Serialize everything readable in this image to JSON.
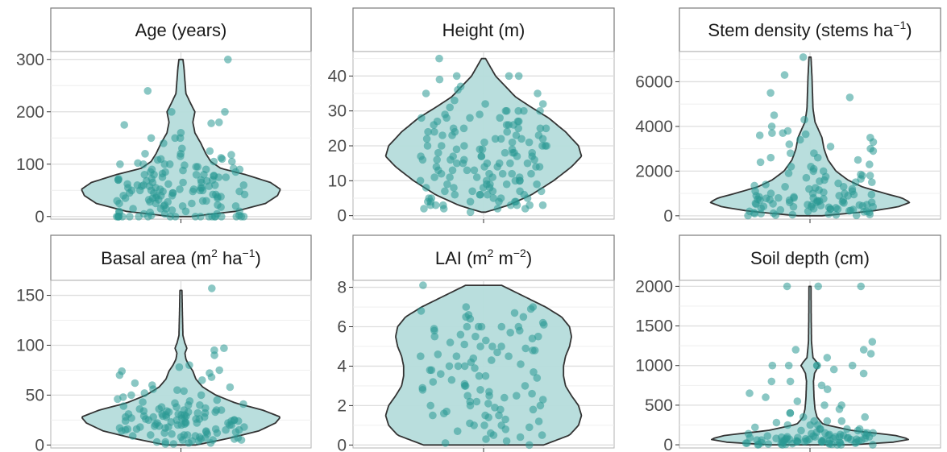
{
  "colors": {
    "violin_fill": "#b5dcdb",
    "violin_stroke": "#333333",
    "point": "#2a9994",
    "strip_bg": "#ffffff",
    "strip_border": "#7a7a7a",
    "grid_major": "#dedede",
    "grid_minor": "#eeeeee",
    "tick_text": "#4d4d4d",
    "strip_text": "#1a1a1a"
  },
  "chart_data": [
    {
      "type": "violin",
      "title": "Age (years)",
      "title_parts": [
        {
          "text": "Age (years)"
        }
      ],
      "ylim": [
        -5,
        315
      ],
      "yticks": [
        0,
        100,
        200,
        300
      ],
      "ytick_labels": [
        "0",
        "100",
        "200",
        "300"
      ],
      "grid": true,
      "density": [
        [
          0,
          0.1
        ],
        [
          10,
          0.55
        ],
        [
          25,
          0.85
        ],
        [
          40,
          0.97
        ],
        [
          52,
          1.0
        ],
        [
          65,
          0.9
        ],
        [
          80,
          0.65
        ],
        [
          92,
          0.4
        ],
        [
          105,
          0.3
        ],
        [
          120,
          0.25
        ],
        [
          140,
          0.2
        ],
        [
          160,
          0.14
        ],
        [
          180,
          0.12
        ],
        [
          200,
          0.14
        ],
        [
          215,
          0.1
        ],
        [
          235,
          0.05
        ],
        [
          260,
          0.04
        ],
        [
          285,
          0.03
        ],
        [
          300,
          0.02
        ]
      ],
      "points": [
        300,
        240,
        200,
        200,
        180,
        178,
        175,
        160,
        150,
        150,
        150,
        140,
        130,
        125,
        120,
        120,
        118,
        115,
        112,
        110,
        110,
        108,
        105,
        105,
        102,
        100,
        100,
        100,
        100,
        98,
        95,
        95,
        92,
        90,
        90,
        90,
        88,
        85,
        85,
        85,
        82,
        80,
        80,
        80,
        80,
        78,
        78,
        75,
        75,
        75,
        72,
        72,
        70,
        70,
        70,
        70,
        68,
        68,
        65,
        65,
        65,
        62,
        62,
        60,
        60,
        60,
        60,
        58,
        58,
        58,
        55,
        55,
        55,
        55,
        52,
        52,
        52,
        50,
        50,
        50,
        50,
        50,
        48,
        48,
        48,
        45,
        45,
        45,
        45,
        42,
        42,
        42,
        40,
        40,
        40,
        40,
        38,
        38,
        36,
        35,
        35,
        35,
        32,
        32,
        30,
        30,
        30,
        28,
        28,
        25,
        25,
        25,
        22,
        22,
        20,
        20,
        20,
        18,
        15,
        15,
        15,
        12,
        10,
        10,
        10,
        8,
        8,
        5,
        5,
        5,
        2,
        2,
        0,
        0,
        0,
        0,
        0,
        0,
        0,
        0,
        0,
        0,
        0,
        0,
        0,
        0,
        0,
        0,
        0,
        0,
        0,
        0
      ]
    },
    {
      "type": "violin",
      "title": "Height (m)",
      "title_parts": [
        {
          "text": "Height (m)"
        }
      ],
      "ylim": [
        -1,
        47
      ],
      "yticks": [
        0,
        10,
        20,
        30,
        40
      ],
      "ytick_labels": [
        "0",
        "10",
        "20",
        "30",
        "40"
      ],
      "grid": true,
      "density": [
        [
          1,
          0.02
        ],
        [
          3,
          0.25
        ],
        [
          6,
          0.48
        ],
        [
          10,
          0.7
        ],
        [
          14,
          0.88
        ],
        [
          17,
          0.98
        ],
        [
          20,
          0.95
        ],
        [
          24,
          0.82
        ],
        [
          28,
          0.65
        ],
        [
          31,
          0.48
        ],
        [
          34,
          0.32
        ],
        [
          37,
          0.22
        ],
        [
          40,
          0.12
        ],
        [
          43,
          0.06
        ],
        [
          45,
          0.02
        ]
      ],
      "points": [
        45,
        40,
        40,
        40,
        39,
        36,
        35,
        33,
        32,
        32,
        31,
        30,
        30,
        30,
        30,
        29,
        29,
        28,
        28,
        28,
        27,
        27,
        27,
        26,
        26,
        26,
        25,
        25,
        25,
        25,
        24,
        24,
        24,
        23,
        23,
        23,
        22,
        22,
        22,
        22,
        21,
        21,
        21,
        20,
        20,
        20,
        20,
        20,
        19,
        19,
        19,
        18,
        18,
        18,
        18,
        17,
        17,
        17,
        17,
        17,
        16,
        16,
        16,
        16,
        15,
        15,
        15,
        15,
        15,
        14,
        14,
        14,
        14,
        13,
        13,
        13,
        13,
        12,
        12,
        12,
        12,
        11,
        11,
        11,
        11,
        10,
        10,
        10,
        10,
        10,
        9,
        9,
        9,
        9,
        8,
        8,
        8,
        8,
        7,
        7,
        7,
        7,
        6,
        6,
        6,
        6,
        6,
        5,
        5,
        5,
        5,
        5,
        4,
        4,
        4,
        4,
        4,
        4,
        3,
        3,
        3,
        3,
        3,
        3,
        3,
        2,
        2,
        2,
        2,
        1,
        30,
        28,
        26,
        24,
        22,
        20,
        18,
        16,
        14,
        12,
        25,
        23,
        19,
        17,
        15,
        11,
        9,
        7,
        35,
        37
      ]
    },
    {
      "type": "violin",
      "title": "Stem density (stems ha⁻¹)",
      "title_parts": [
        {
          "text": "Stem density (stems ha"
        },
        {
          "text": "−1",
          "sup": true
        },
        {
          "text": ")"
        }
      ],
      "ylim": [
        -150,
        7350
      ],
      "yticks": [
        0,
        2000,
        4000,
        6000
      ],
      "ytick_labels": [
        "0",
        "2000",
        "4000",
        "6000"
      ],
      "grid": true,
      "density": [
        [
          0,
          0.12
        ],
        [
          200,
          0.6
        ],
        [
          400,
          0.88
        ],
        [
          600,
          1.0
        ],
        [
          800,
          0.92
        ],
        [
          1000,
          0.75
        ],
        [
          1300,
          0.52
        ],
        [
          1600,
          0.38
        ],
        [
          2000,
          0.26
        ],
        [
          2500,
          0.18
        ],
        [
          3000,
          0.14
        ],
        [
          3500,
          0.12
        ],
        [
          3800,
          0.09
        ],
        [
          4200,
          0.05
        ],
        [
          4800,
          0.03
        ],
        [
          5500,
          0.025
        ],
        [
          6200,
          0.02
        ],
        [
          7100,
          0.01
        ]
      ],
      "points": [
        7100,
        6300,
        5500,
        5300,
        4500,
        4300,
        4000,
        3800,
        3700,
        3650,
        3600,
        3500,
        3400,
        3300,
        3100,
        3000,
        2900,
        2800,
        2600,
        2500,
        2400,
        2300,
        2200,
        2100,
        2000,
        2000,
        1900,
        1850,
        1800,
        1750,
        1700,
        1650,
        1600,
        1550,
        1500,
        1450,
        1400,
        1350,
        1300,
        1300,
        1250,
        1200,
        1150,
        1100,
        1100,
        1050,
        1000,
        1000,
        950,
        950,
        900,
        900,
        850,
        850,
        800,
        800,
        780,
        760,
        740,
        720,
        700,
        700,
        680,
        660,
        640,
        620,
        600,
        600,
        580,
        560,
        540,
        520,
        500,
        500,
        480,
        460,
        440,
        420,
        400,
        400,
        380,
        360,
        340,
        320,
        300,
        300,
        280,
        260,
        240,
        220,
        200,
        200,
        180,
        160,
        140,
        120,
        100,
        100,
        80,
        60,
        50,
        40,
        30,
        20,
        10,
        900,
        700,
        500,
        300,
        1500,
        1200,
        800,
        600,
        400,
        200,
        2600,
        2200,
        1800,
        1000,
        3700,
        3200,
        2800
      ]
    },
    {
      "type": "violin",
      "title": "Basal area (m² ha⁻¹)",
      "title_parts": [
        {
          "text": "Basal area (m"
        },
        {
          "text": "2",
          "sup": true
        },
        {
          "text": " ha"
        },
        {
          "text": "−1",
          "sup": true
        },
        {
          "text": ")"
        }
      ],
      "ylim": [
        -3,
        165
      ],
      "yticks": [
        0,
        50,
        100,
        150
      ],
      "ytick_labels": [
        "0",
        "50",
        "100",
        "150"
      ],
      "grid": true,
      "density": [
        [
          0,
          0.15
        ],
        [
          6,
          0.45
        ],
        [
          14,
          0.78
        ],
        [
          22,
          0.95
        ],
        [
          28,
          1.0
        ],
        [
          35,
          0.82
        ],
        [
          42,
          0.55
        ],
        [
          50,
          0.35
        ],
        [
          58,
          0.22
        ],
        [
          66,
          0.15
        ],
        [
          74,
          0.12
        ],
        [
          80,
          0.08
        ],
        [
          86,
          0.05
        ],
        [
          92,
          0.04
        ],
        [
          97,
          0.06
        ],
        [
          102,
          0.04
        ],
        [
          110,
          0.02
        ],
        [
          130,
          0.015
        ],
        [
          155,
          0.01
        ]
      ],
      "points": [
        157,
        97,
        95,
        90,
        80,
        78,
        75,
        74,
        72,
        70,
        68,
        65,
        62,
        60,
        58,
        56,
        55,
        54,
        52,
        50,
        50,
        48,
        46,
        45,
        44,
        43,
        42,
        41,
        40,
        40,
        39,
        38,
        37,
        36,
        35,
        35,
        34,
        34,
        33,
        33,
        32,
        32,
        31,
        31,
        30,
        30,
        30,
        29,
        29,
        28,
        28,
        28,
        27,
        27,
        26,
        26,
        25,
        25,
        25,
        24,
        24,
        23,
        23,
        22,
        22,
        22,
        21,
        21,
        20,
        20,
        20,
        19,
        19,
        18,
        18,
        17,
        17,
        16,
        16,
        15,
        15,
        15,
        14,
        14,
        13,
        13,
        12,
        12,
        11,
        11,
        10,
        10,
        10,
        9,
        9,
        8,
        8,
        7,
        7,
        6,
        6,
        5,
        5,
        5,
        4,
        4,
        3,
        3,
        2,
        2,
        1,
        1,
        25,
        27,
        29,
        31,
        33,
        35,
        28,
        26,
        24,
        22,
        20,
        18,
        16,
        38,
        36
      ]
    },
    {
      "type": "violin",
      "title": "LAI (m² m⁻²)",
      "title_parts": [
        {
          "text": "LAI (m"
        },
        {
          "text": "2",
          "sup": true
        },
        {
          "text": " m"
        },
        {
          "text": "−2",
          "sup": true
        },
        {
          "text": ")"
        }
      ],
      "ylim": [
        -0.15,
        8.35
      ],
      "yticks": [
        0,
        2,
        4,
        6,
        8
      ],
      "ytick_labels": [
        "0",
        "2",
        "4",
        "6",
        "8"
      ],
      "grid": true,
      "density": [
        [
          0,
          0.6
        ],
        [
          0.5,
          0.86
        ],
        [
          1.0,
          0.95
        ],
        [
          1.5,
          0.98
        ],
        [
          2.0,
          0.95
        ],
        [
          2.5,
          0.88
        ],
        [
          3.0,
          0.82
        ],
        [
          3.5,
          0.8
        ],
        [
          4.0,
          0.8
        ],
        [
          4.5,
          0.82
        ],
        [
          5.0,
          0.86
        ],
        [
          5.5,
          0.88
        ],
        [
          6.0,
          0.86
        ],
        [
          6.5,
          0.78
        ],
        [
          7.0,
          0.62
        ],
        [
          7.5,
          0.42
        ],
        [
          8.1,
          0.18
        ]
      ],
      "points": [
        8.1,
        7.0,
        7.0,
        6.9,
        6.8,
        6.7,
        6.6,
        6.5,
        6.4,
        6.2,
        6.1,
        6.0,
        6.0,
        6.0,
        6.0,
        5.9,
        5.8,
        5.7,
        5.6,
        5.5,
        5.5,
        5.4,
        5.3,
        5.2,
        5.1,
        5.0,
        5.0,
        4.9,
        4.8,
        4.7,
        4.6,
        4.5,
        4.5,
        4.4,
        4.3,
        4.2,
        4.1,
        4.0,
        4.0,
        3.9,
        3.8,
        3.7,
        3.6,
        3.5,
        3.5,
        3.4,
        3.3,
        3.2,
        3.1,
        3.0,
        3.0,
        2.9,
        2.8,
        2.7,
        2.6,
        2.5,
        2.5,
        2.4,
        2.3,
        2.2,
        2.2,
        2.1,
        2.0,
        2.0,
        1.9,
        1.8,
        1.7,
        1.6,
        1.5,
        1.5,
        1.4,
        1.3,
        1.2,
        1.1,
        1.0,
        1.0,
        0.9,
        0.8,
        0.7,
        0.6,
        0.5,
        0.4,
        0.3,
        0.2,
        0.1,
        0.0,
        6.0,
        5.5,
        5.0,
        4.5,
        4.0,
        3.0,
        2.5,
        2.0,
        1.5,
        1.0,
        0.5,
        6.5,
        5.8,
        4.8,
        3.8,
        2.8,
        1.8
      ]
    },
    {
      "type": "violin",
      "title": "Soil depth (cm)",
      "title_parts": [
        {
          "text": "Soil depth (cm)"
        }
      ],
      "ylim": [
        -40,
        2075
      ],
      "yticks": [
        0,
        500,
        1000,
        1500,
        2000
      ],
      "ytick_labels": [
        "0",
        "500",
        "1000",
        "1500",
        "2000"
      ],
      "grid": true,
      "density": [
        [
          0,
          0.4
        ],
        [
          30,
          0.82
        ],
        [
          70,
          1.0
        ],
        [
          120,
          0.85
        ],
        [
          180,
          0.42
        ],
        [
          260,
          0.13
        ],
        [
          350,
          0.07
        ],
        [
          450,
          0.05
        ],
        [
          600,
          0.04
        ],
        [
          800,
          0.035
        ],
        [
          900,
          0.045
        ],
        [
          960,
          0.07
        ],
        [
          1000,
          0.09
        ],
        [
          1040,
          0.07
        ],
        [
          1100,
          0.03
        ],
        [
          1300,
          0.015
        ],
        [
          1600,
          0.012
        ],
        [
          2000,
          0.01
        ]
      ],
      "points": [
        2000,
        2000,
        2000,
        1300,
        1200,
        1200,
        1150,
        1100,
        1000,
        1000,
        1000,
        1000,
        1000,
        950,
        900,
        800,
        800,
        750,
        700,
        650,
        600,
        550,
        500,
        500,
        450,
        400,
        400,
        350,
        300,
        300,
        280,
        250,
        250,
        220,
        200,
        200,
        200,
        180,
        180,
        160,
        150,
        150,
        150,
        140,
        130,
        120,
        120,
        110,
        100,
        100,
        100,
        100,
        95,
        90,
        90,
        85,
        80,
        80,
        80,
        75,
        70,
        70,
        70,
        65,
        60,
        60,
        60,
        55,
        50,
        50,
        50,
        50,
        45,
        40,
        40,
        40,
        35,
        30,
        30,
        30,
        25,
        20,
        20,
        20,
        15,
        10,
        10,
        10,
        5,
        5,
        5,
        0,
        0,
        0,
        0,
        0,
        60,
        70,
        80,
        90,
        100,
        110,
        120,
        130,
        140,
        50,
        40,
        30,
        20,
        150,
        200,
        250,
        300,
        350
      ]
    }
  ]
}
